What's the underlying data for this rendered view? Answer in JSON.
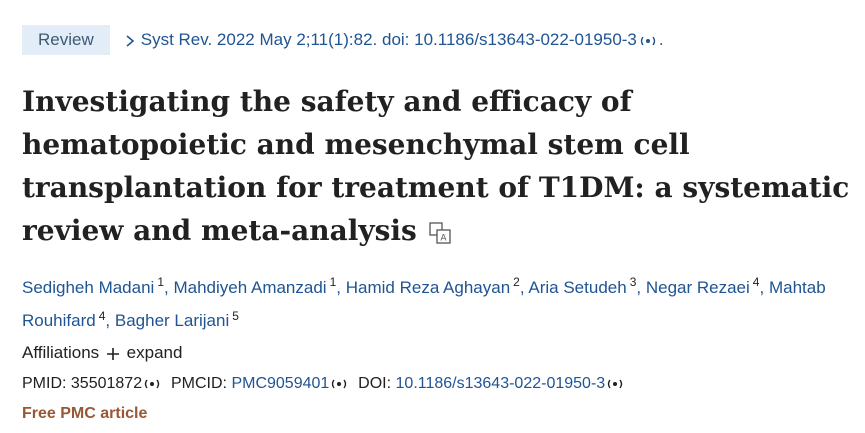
{
  "badge": "Review",
  "citation": {
    "text": "Syst Rev. 2022 May 2;11(1):82. doi: 10.1186/s13643-022-01950-3",
    "end": "."
  },
  "title": "Investigating the safety and efficacy of hematopoietic and mesenchymal stem cell transplantation for treatment of T1DM: a systematic review and meta-analysis",
  "authors": {
    "separator": ",",
    "list": [
      {
        "name": "Sedigheh Madani",
        "affiliation": "1"
      },
      {
        "name": "Mahdiyeh Amanzadi",
        "affiliation": "1"
      },
      {
        "name": "Hamid Reza Aghayan",
        "affiliation": "2"
      },
      {
        "name": "Aria Setudeh",
        "affiliation": "3"
      },
      {
        "name": "Negar Rezaei",
        "affiliation": "4"
      },
      {
        "name": "Mahtab Rouhifard",
        "affiliation": "4"
      },
      {
        "name": "Bagher Larijani",
        "affiliation": "5"
      }
    ]
  },
  "affiliations": {
    "label": "Affiliations",
    "action": "expand"
  },
  "identifiers": {
    "pmid_label": "PMID:",
    "pmid": "35501872",
    "pmcid_label": "PMCID:",
    "pmcid": "PMC9059401",
    "doi_label": "DOI:",
    "doi": "10.1186/s13643-022-01950-3"
  },
  "free_label": "Free PMC article"
}
